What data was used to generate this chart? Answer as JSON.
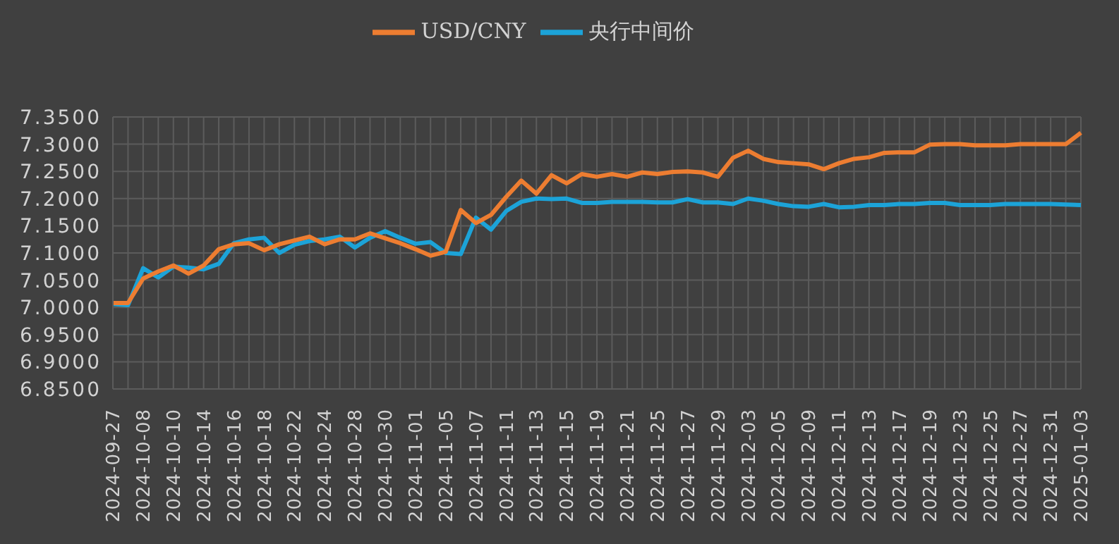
{
  "chart_data": {
    "type": "line",
    "categories": [
      "2024-09-27",
      null,
      "2024-10-08",
      null,
      "2024-10-10",
      null,
      "2024-10-14",
      null,
      "2024-10-16",
      null,
      "2024-10-18",
      null,
      "2024-10-22",
      null,
      "2024-10-24",
      null,
      "2024-10-28",
      null,
      "2024-10-30",
      null,
      "2024-11-01",
      null,
      "2024-11-05",
      null,
      "2024-11-07",
      null,
      "2024-11-11",
      null,
      "2024-11-13",
      null,
      "2024-11-15",
      null,
      "2024-11-19",
      null,
      "2024-11-21",
      null,
      "2024-11-25",
      null,
      "2024-11-27",
      null,
      "2024-11-29",
      null,
      "2024-12-03",
      null,
      "2024-12-05",
      null,
      "2024-12-09",
      null,
      "2024-12-11",
      null,
      "2024-12-13",
      null,
      "2024-12-17",
      null,
      "2024-12-19",
      null,
      "2024-12-23",
      null,
      "2024-12-25",
      null,
      "2024-12-27",
      null,
      "2024-12-31",
      null,
      "2025-01-03"
    ],
    "series": [
      {
        "name": "央行中间价",
        "color": "#1ca3d8",
        "values": [
          7.006,
          7.004,
          7.072,
          7.055,
          7.075,
          7.073,
          7.07,
          7.08,
          7.118,
          7.125,
          7.128,
          7.1,
          7.115,
          7.122,
          7.125,
          7.13,
          7.11,
          7.128,
          7.14,
          7.128,
          7.117,
          7.12,
          7.1,
          7.098,
          7.165,
          7.143,
          7.177,
          7.194,
          7.2,
          7.199,
          7.2,
          7.192,
          7.192,
          7.194,
          7.194,
          7.194,
          7.193,
          7.193,
          7.199,
          7.193,
          7.193,
          7.19,
          7.2,
          7.196,
          7.19,
          7.186,
          7.185,
          7.19,
          7.184,
          7.185,
          7.188,
          7.188,
          7.19,
          7.19,
          7.192,
          7.192,
          7.188,
          7.188,
          7.188,
          7.19,
          7.19,
          7.19,
          7.19,
          7.189,
          7.188
        ]
      },
      {
        "name": "USD/CNY",
        "color": "#ed7d31",
        "values": [
          7.008,
          7.008,
          7.053,
          7.066,
          7.077,
          7.062,
          7.077,
          7.107,
          7.116,
          7.118,
          7.105,
          7.116,
          7.123,
          7.13,
          7.116,
          7.125,
          7.125,
          7.136,
          7.127,
          7.118,
          7.107,
          7.095,
          7.102,
          7.179,
          7.155,
          7.17,
          7.203,
          7.233,
          7.209,
          7.243,
          7.228,
          7.245,
          7.24,
          7.245,
          7.24,
          7.248,
          7.245,
          7.249,
          7.25,
          7.248,
          7.24,
          7.275,
          7.288,
          7.273,
          7.267,
          7.265,
          7.263,
          7.254,
          7.265,
          7.273,
          7.276,
          7.284,
          7.285,
          7.285,
          7.299,
          7.3,
          7.3,
          7.298,
          7.298,
          7.298,
          7.3,
          7.3,
          7.3,
          7.3,
          7.321
        ]
      }
    ],
    "ylim": [
      6.85,
      7.35
    ],
    "yticks": [
      {
        "value": 6.85,
        "label": "6.8500"
      },
      {
        "value": 6.9,
        "label": "6.9000"
      },
      {
        "value": 6.95,
        "label": "6.9500"
      },
      {
        "value": 7.0,
        "label": "7.0000"
      },
      {
        "value": 7.05,
        "label": "7.0500"
      },
      {
        "value": 7.1,
        "label": "7.1000"
      },
      {
        "value": 7.15,
        "label": "7.1500"
      },
      {
        "value": 7.2,
        "label": "7.2000"
      },
      {
        "value": 7.25,
        "label": "7.2500"
      },
      {
        "value": 7.3,
        "label": "7.3000"
      },
      {
        "value": 7.35,
        "label": "7.3500"
      }
    ],
    "grid": true,
    "legend": "top",
    "marker": "none",
    "line_style": "solid"
  }
}
